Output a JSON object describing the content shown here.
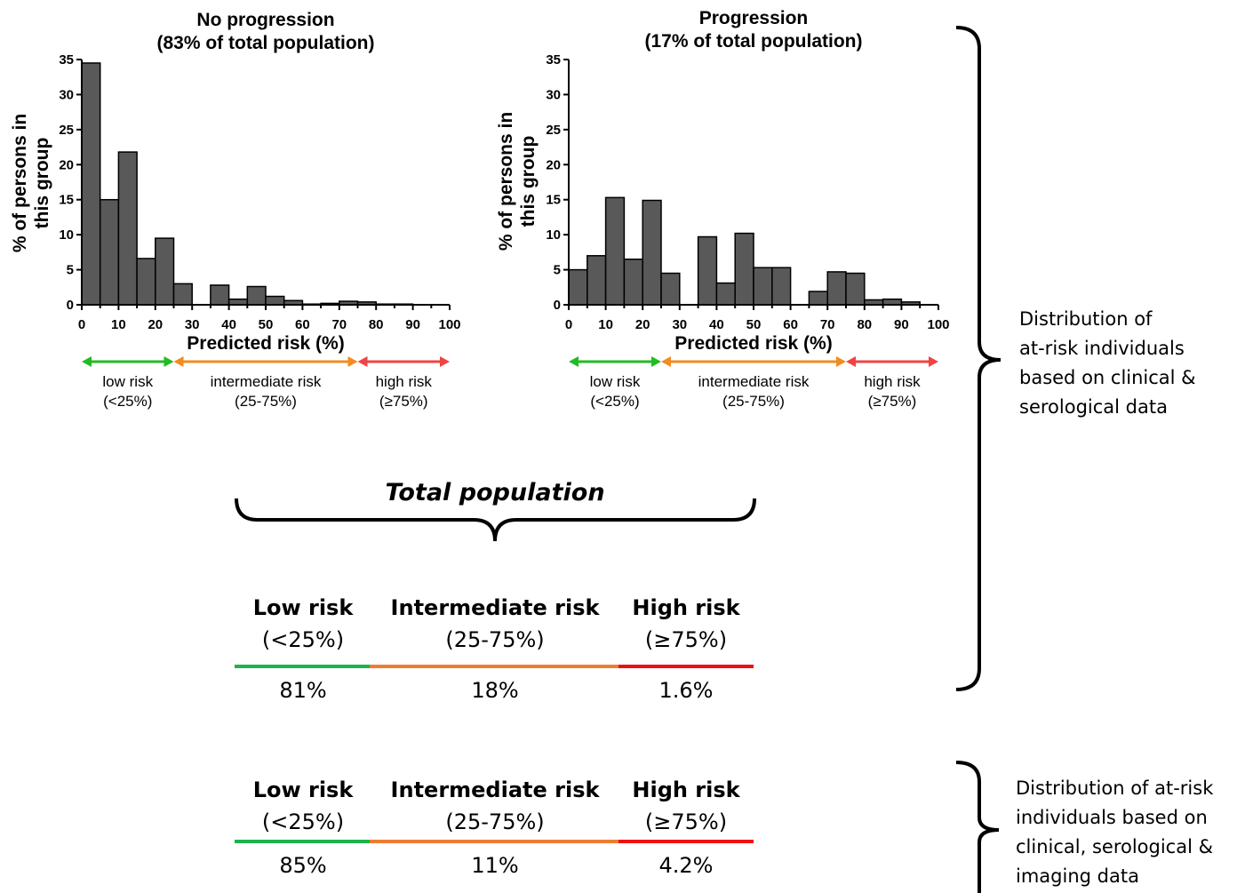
{
  "chart_data": [
    {
      "type": "bar",
      "title": "No progression",
      "subtitle": "(83% of total population)",
      "xlabel": "Predicted risk (%)",
      "ylabel_line1": "% of persons in",
      "ylabel_line2": "this group",
      "bin_width": 5,
      "x": [
        0,
        5,
        10,
        15,
        20,
        25,
        30,
        35,
        40,
        45,
        50,
        55,
        60,
        65,
        70,
        75,
        80,
        85,
        90,
        95
      ],
      "values": [
        34.5,
        15,
        21.8,
        6.6,
        9.5,
        3,
        0,
        2.8,
        0.8,
        2.6,
        1.2,
        0.6,
        0.1,
        0.2,
        0.5,
        0.4,
        0.1,
        0.1,
        0,
        0
      ],
      "xlim": [
        0,
        100
      ],
      "ylim": [
        0,
        35
      ],
      "xticks": [
        "0",
        "10",
        "20",
        "30",
        "40",
        "50",
        "60",
        "70",
        "80",
        "90",
        "100"
      ],
      "yticks": [
        "0",
        "5",
        "10",
        "15",
        "20",
        "25",
        "30",
        "35"
      ],
      "bar_color": "#595959",
      "risk_zones": [
        {
          "label": "low risk",
          "range": "(<25%)",
          "from": 0,
          "to": 25,
          "color": "#22bb22"
        },
        {
          "label": "intermediate risk",
          "range": "(25-75%)",
          "from": 25,
          "to": 75,
          "color": "#f28c22"
        },
        {
          "label": "high risk",
          "range": "(≥75%)",
          "from": 75,
          "to": 100,
          "color": "#ee4444"
        }
      ]
    },
    {
      "type": "bar",
      "title": "Progression",
      "subtitle": "(17% of total population)",
      "xlabel": "Predicted risk (%)",
      "ylabel_line1": "% of persons in",
      "ylabel_line2": "this group",
      "bin_width": 5,
      "x": [
        0,
        5,
        10,
        15,
        20,
        25,
        30,
        35,
        40,
        45,
        50,
        55,
        60,
        65,
        70,
        75,
        80,
        85,
        90,
        95
      ],
      "values": [
        5,
        7,
        15.3,
        6.5,
        14.9,
        4.5,
        0,
        9.7,
        3.1,
        10.2,
        5.3,
        5.3,
        0,
        1.9,
        4.7,
        4.5,
        0.7,
        0.8,
        0.4,
        0
      ],
      "xlim": [
        0,
        100
      ],
      "ylim": [
        0,
        35
      ],
      "xticks": [
        "0",
        "10",
        "20",
        "30",
        "40",
        "50",
        "60",
        "70",
        "80",
        "90",
        "100"
      ],
      "yticks": [
        "0",
        "5",
        "10",
        "15",
        "20",
        "25",
        "30",
        "35"
      ],
      "bar_color": "#595959",
      "risk_zones": [
        {
          "label": "low risk",
          "range": "(<25%)",
          "from": 0,
          "to": 25,
          "color": "#22bb22"
        },
        {
          "label": "intermediate risk",
          "range": "(25-75%)",
          "from": 25,
          "to": 75,
          "color": "#f28c22"
        },
        {
          "label": "high risk",
          "range": "(≥75%)",
          "from": 75,
          "to": 100,
          "color": "#ee4444"
        }
      ]
    }
  ],
  "total_population": {
    "title": "Total population",
    "headers": [
      "Low risk",
      "Intermediate risk",
      "High risk"
    ],
    "ranges": [
      "(<25%)",
      "(25-75%)",
      "(≥75%)"
    ],
    "colors": [
      "#1db34a",
      "#ed7d31",
      "#ee1111"
    ],
    "clinical_serological": [
      "81%",
      "18%",
      "1.6%"
    ],
    "clinical_serological_imaging": [
      "85%",
      "11%",
      "4.2%"
    ]
  },
  "notes": {
    "clinical_serological": [
      "Distribution of",
      "at-risk individuals",
      "based on clinical &",
      "serological data"
    ],
    "clinical_serological_imaging": [
      "Distribution of at-risk",
      "individuals based on",
      "clinical, serological &",
      "imaging data"
    ]
  }
}
